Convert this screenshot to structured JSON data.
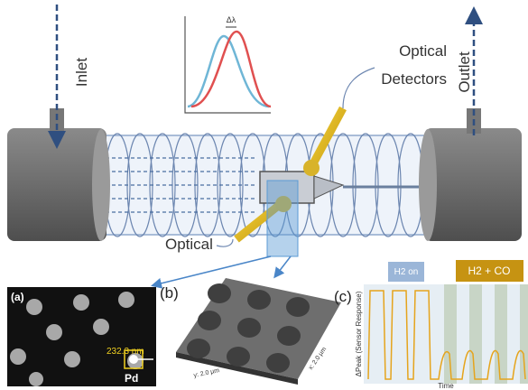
{
  "labels": {
    "inlet": "Inlet",
    "outlet": "Outlet",
    "detectors_line1": "Optical",
    "detectors_line2": "Detectors",
    "optical": "Optical",
    "delta_lambda": "Δλ"
  },
  "panels": {
    "a": {
      "tag": "(a)",
      "measure": "232.3 nm",
      "material": "Pd"
    },
    "b": {
      "tag": "(b)",
      "y_axis": "y: 2.0 µm",
      "x_axis": "x: 2.0 µm"
    },
    "c": {
      "tag": "(c)",
      "h2_on": "H2 on",
      "h2_co": "H2 + CO",
      "y_axis": "ΔPeak (Sensor Response)",
      "x_axis": "Time"
    }
  }
}
